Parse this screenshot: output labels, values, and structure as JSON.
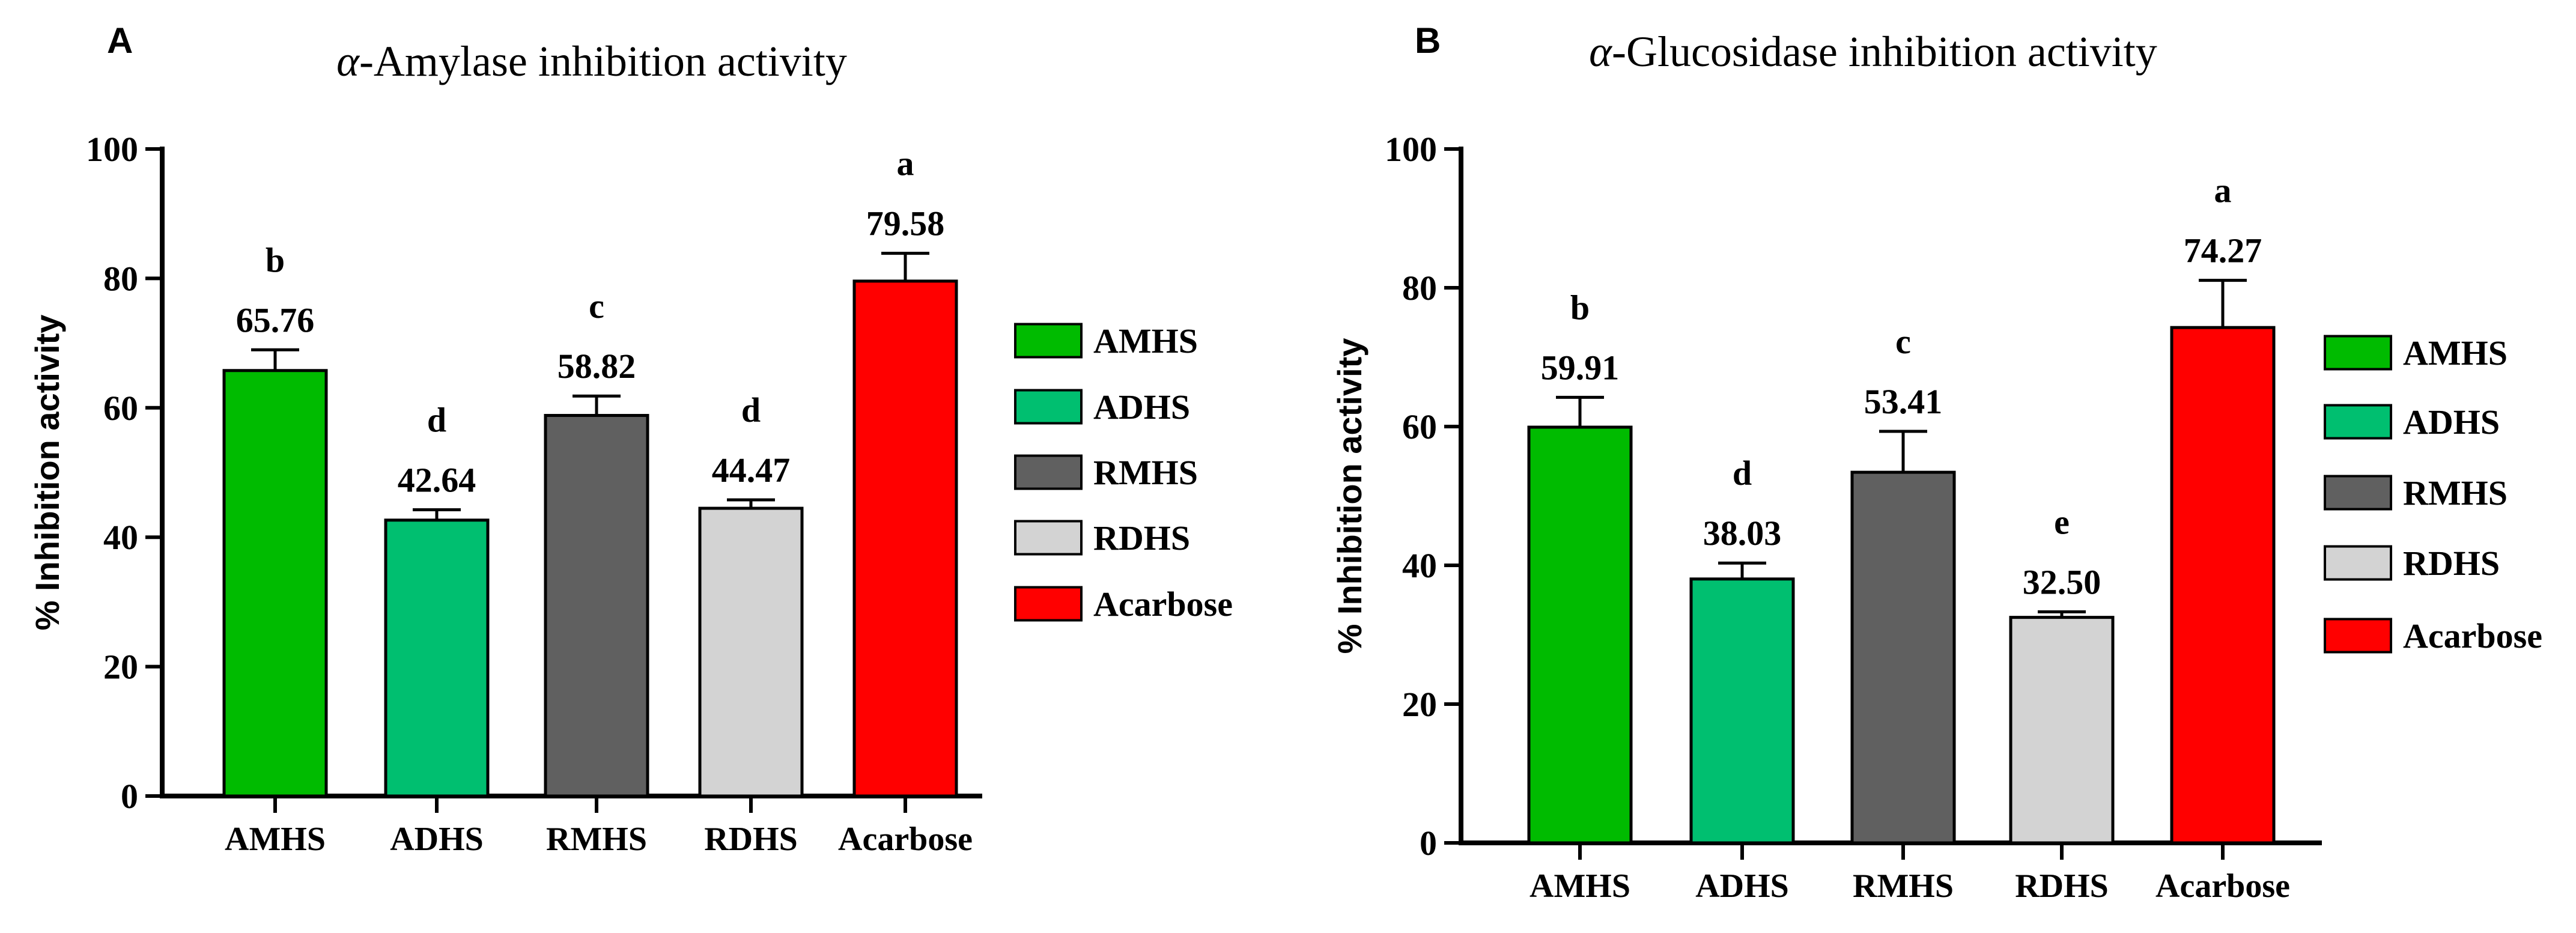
{
  "chart_data": [
    {
      "type": "bar",
      "panel": "A",
      "title_greek": "α",
      "title": "-Amylase inhibition activity",
      "xlabel": "",
      "ylabel": "% Inhibition activity",
      "ylim": [
        0,
        100
      ],
      "yticks": [
        0,
        20,
        40,
        60,
        80,
        100
      ],
      "categories": [
        "AMHS",
        "ADHS",
        "RMHS",
        "RDHS",
        "Acarbose"
      ],
      "values": [
        65.76,
        42.64,
        58.82,
        44.47,
        79.58
      ],
      "value_labels": [
        "65.76",
        "42.64",
        "58.82",
        "44.47",
        "79.58"
      ],
      "errors": [
        3.2,
        1.6,
        3.0,
        1.3,
        4.3
      ],
      "significance": [
        "b",
        "d",
        "c",
        "d",
        "a"
      ],
      "colors": [
        "#00BB00",
        "#00BF70",
        "#606060",
        "#D3D3D3",
        "#FF0000"
      ],
      "legend": [
        "AMHS",
        "ADHS",
        "RMHS",
        "RDHS",
        "Acarbose"
      ],
      "legend_position": "right"
    },
    {
      "type": "bar",
      "panel": "B",
      "title_greek": "α",
      "title": "-Glucosidase inhibition activity",
      "xlabel": "",
      "ylabel": "% Inhibition activity",
      "ylim": [
        0,
        100
      ],
      "yticks": [
        0,
        20,
        40,
        60,
        80,
        100
      ],
      "categories": [
        "AMHS",
        "ADHS",
        "RMHS",
        "RDHS",
        "Acarbose"
      ],
      "values": [
        59.91,
        38.03,
        53.41,
        32.5,
        74.27
      ],
      "value_labels": [
        "59.91",
        "38.03",
        "53.41",
        "32.50",
        "74.27"
      ],
      "errors": [
        4.3,
        2.3,
        5.9,
        0.8,
        6.8
      ],
      "significance": [
        "b",
        "d",
        "c",
        "e",
        "a"
      ],
      "colors": [
        "#00BB00",
        "#00BF70",
        "#606060",
        "#D3D3D3",
        "#FF0000"
      ],
      "legend": [
        "AMHS",
        "ADHS",
        "RMHS",
        "RDHS",
        "Acarbose"
      ],
      "legend_position": "right"
    }
  ]
}
